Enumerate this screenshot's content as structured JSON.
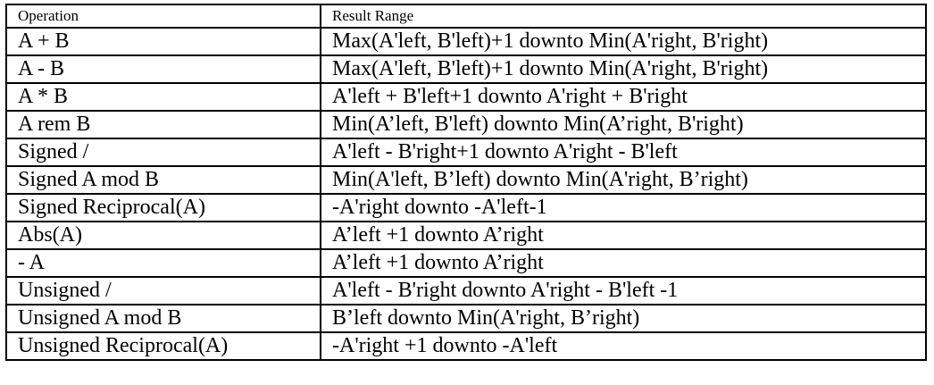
{
  "table": {
    "headers": [
      "Operation",
      "Result Range"
    ],
    "rows": [
      [
        "A + B",
        "Max(A'left, B'left)+1 downto Min(A'right, B'right)"
      ],
      [
        "A - B",
        "Max(A'left, B'left)+1 downto Min(A'right, B'right)"
      ],
      [
        "A * B",
        "A'left + B'left+1 downto A'right + B'right"
      ],
      [
        "A rem B",
        "Min(A’left, B'left) downto Min(A’right, B'right)"
      ],
      [
        "Signed /",
        "A'left - B'right+1 downto A'right - B'left"
      ],
      [
        "Signed A mod B",
        "Min(A'left, B’left) downto Min(A'right, B’right)"
      ],
      [
        "Signed Reciprocal(A)",
        "-A'right downto -A'left-1"
      ],
      [
        "Abs(A)",
        "A’left +1 downto A’right"
      ],
      [
        "- A",
        "A’left +1 downto A’right"
      ],
      [
        "Unsigned /",
        "A'left - B'right downto A'right - B'left -1"
      ],
      [
        "Unsigned A mod B",
        "B’left downto Min(A'right, B’right)"
      ],
      [
        "Unsigned Reciprocal(A)",
        "-A'right +1 downto -A'left"
      ]
    ]
  }
}
